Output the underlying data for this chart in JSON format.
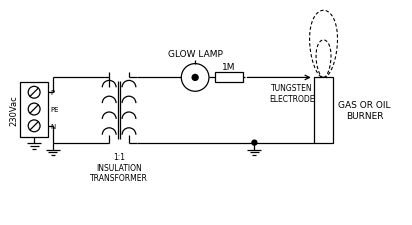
{
  "bg_color": "#ffffff",
  "line_color": "#000000",
  "labels": {
    "voltage": "230Vac",
    "transformer": "1:1\nINSULATION\nTRANSFORMER",
    "glow_lamp": "GLOW LAMP",
    "resistor": "1M",
    "electrode": "TUNGSTEN\nELECTRODE",
    "burner": "GAS OR OIL\nBURNER",
    "P": "P",
    "PE": "PE",
    "N": "N"
  }
}
